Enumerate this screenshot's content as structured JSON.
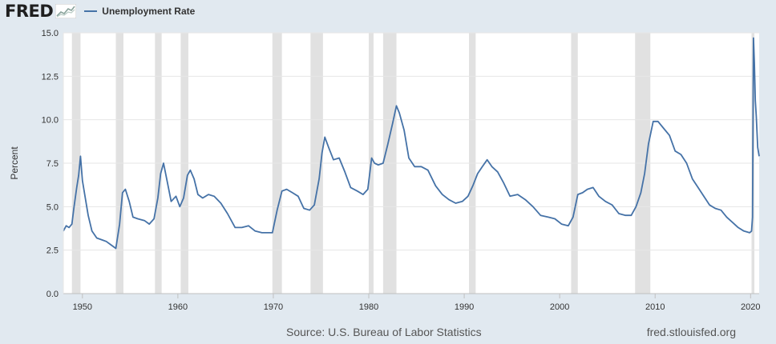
{
  "header": {
    "logo_text": "FRED",
    "legend_label": "Unemployment Rate"
  },
  "footer": {
    "source": "Source: U.S. Bureau of Labor Statistics",
    "site": "fred.stlouisfed.org"
  },
  "colors": {
    "background": "#e1e9f0",
    "plot_background": "#ffffff",
    "series": "#4572a7",
    "recession": "#e1e1e1",
    "grid": "#e6e6e6"
  },
  "chart_data": {
    "type": "line",
    "ylabel": "Percent",
    "xlim": [
      1948.0,
      2020.9
    ],
    "ylim": [
      0,
      15
    ],
    "yticks": [
      0.0,
      2.5,
      5.0,
      7.5,
      10.0,
      12.5,
      15.0
    ],
    "ytick_labels": [
      "0.0",
      "2.5",
      "5.0",
      "7.5",
      "10.0",
      "12.5",
      "15.0"
    ],
    "xticks": [
      1950,
      1960,
      1970,
      1980,
      1990,
      2000,
      2010,
      2020
    ],
    "xtick_labels": [
      "1950",
      "1960",
      "1970",
      "1980",
      "1990",
      "2000",
      "2010",
      "2020"
    ],
    "grid": true,
    "recessions": [
      [
        1948.9,
        1949.8
      ],
      [
        1953.5,
        1954.3
      ],
      [
        1957.6,
        1958.3
      ],
      [
        1960.3,
        1961.1
      ],
      [
        1969.9,
        1970.9
      ],
      [
        1973.9,
        1975.2
      ],
      [
        1980.0,
        1980.5
      ],
      [
        1981.5,
        1982.9
      ],
      [
        1990.5,
        1991.2
      ],
      [
        2001.2,
        2001.9
      ],
      [
        2007.9,
        2009.5
      ],
      [
        2020.1,
        2020.4
      ]
    ],
    "series": [
      {
        "name": "Unemployment Rate",
        "x": [
          1948.0,
          1948.3,
          1948.6,
          1948.9,
          1949.1,
          1949.4,
          1949.6,
          1949.8,
          1950.0,
          1950.3,
          1950.6,
          1951.0,
          1951.5,
          1952.0,
          1952.5,
          1953.0,
          1953.5,
          1953.9,
          1954.2,
          1954.5,
          1954.9,
          1955.3,
          1955.8,
          1956.5,
          1957.0,
          1957.5,
          1957.9,
          1958.2,
          1958.5,
          1958.9,
          1959.3,
          1959.8,
          1960.2,
          1960.6,
          1961.0,
          1961.3,
          1961.7,
          1962.1,
          1962.6,
          1963.2,
          1963.8,
          1964.5,
          1965.2,
          1966.0,
          1966.7,
          1967.4,
          1968.1,
          1968.8,
          1969.4,
          1969.9,
          1970.4,
          1970.9,
          1971.4,
          1972.0,
          1972.6,
          1973.2,
          1973.8,
          1974.3,
          1974.8,
          1975.1,
          1975.4,
          1975.8,
          1976.3,
          1976.9,
          1977.5,
          1978.1,
          1978.8,
          1979.4,
          1979.9,
          1980.3,
          1980.6,
          1981.0,
          1981.5,
          1982.0,
          1982.5,
          1982.9,
          1983.2,
          1983.7,
          1984.2,
          1984.8,
          1985.5,
          1986.2,
          1987.0,
          1987.7,
          1988.4,
          1989.1,
          1989.8,
          1990.4,
          1990.9,
          1991.4,
          1991.9,
          1992.4,
          1992.9,
          1993.5,
          1994.1,
          1994.8,
          1995.6,
          1996.4,
          1997.2,
          1998.0,
          1998.8,
          1999.5,
          2000.2,
          2000.9,
          2001.4,
          2001.9,
          2002.4,
          2002.9,
          2003.5,
          2004.1,
          2004.8,
          2005.5,
          2006.2,
          2006.9,
          2007.5,
          2008.0,
          2008.5,
          2008.9,
          2009.3,
          2009.8,
          2010.3,
          2010.9,
          2011.5,
          2012.1,
          2012.7,
          2013.3,
          2013.9,
          2014.5,
          2015.1,
          2015.7,
          2016.3,
          2016.9,
          2017.5,
          2018.1,
          2018.7,
          2019.3,
          2019.9,
          2020.1,
          2020.2,
          2020.3,
          2020.4,
          2020.5,
          2020.6,
          2020.75,
          2020.9
        ],
        "values": [
          3.6,
          3.9,
          3.8,
          4.0,
          4.9,
          6.1,
          6.8,
          7.9,
          6.5,
          5.5,
          4.5,
          3.6,
          3.2,
          3.1,
          3.0,
          2.8,
          2.6,
          4.0,
          5.8,
          6.0,
          5.3,
          4.4,
          4.3,
          4.2,
          4.0,
          4.3,
          5.5,
          6.9,
          7.5,
          6.4,
          5.3,
          5.6,
          5.0,
          5.5,
          6.8,
          7.1,
          6.6,
          5.7,
          5.5,
          5.7,
          5.6,
          5.2,
          4.6,
          3.8,
          3.8,
          3.9,
          3.6,
          3.5,
          3.5,
          3.5,
          4.8,
          5.9,
          6.0,
          5.8,
          5.6,
          4.9,
          4.8,
          5.1,
          6.6,
          8.1,
          9.0,
          8.4,
          7.7,
          7.8,
          7.0,
          6.1,
          5.9,
          5.7,
          6.0,
          7.8,
          7.5,
          7.4,
          7.5,
          8.6,
          9.8,
          10.8,
          10.4,
          9.4,
          7.8,
          7.3,
          7.3,
          7.1,
          6.2,
          5.7,
          5.4,
          5.2,
          5.3,
          5.6,
          6.2,
          6.9,
          7.3,
          7.7,
          7.3,
          7.0,
          6.4,
          5.6,
          5.7,
          5.4,
          5.0,
          4.5,
          4.4,
          4.3,
          4.0,
          3.9,
          4.4,
          5.7,
          5.8,
          6.0,
          6.1,
          5.6,
          5.3,
          5.1,
          4.6,
          4.5,
          4.5,
          5.0,
          5.8,
          6.9,
          8.6,
          9.9,
          9.9,
          9.5,
          9.1,
          8.2,
          8.0,
          7.5,
          6.6,
          6.1,
          5.6,
          5.1,
          4.9,
          4.8,
          4.4,
          4.1,
          3.8,
          3.6,
          3.5,
          3.6,
          4.4,
          14.7,
          13.3,
          11.1,
          10.2,
          8.4,
          7.9
        ]
      }
    ]
  }
}
